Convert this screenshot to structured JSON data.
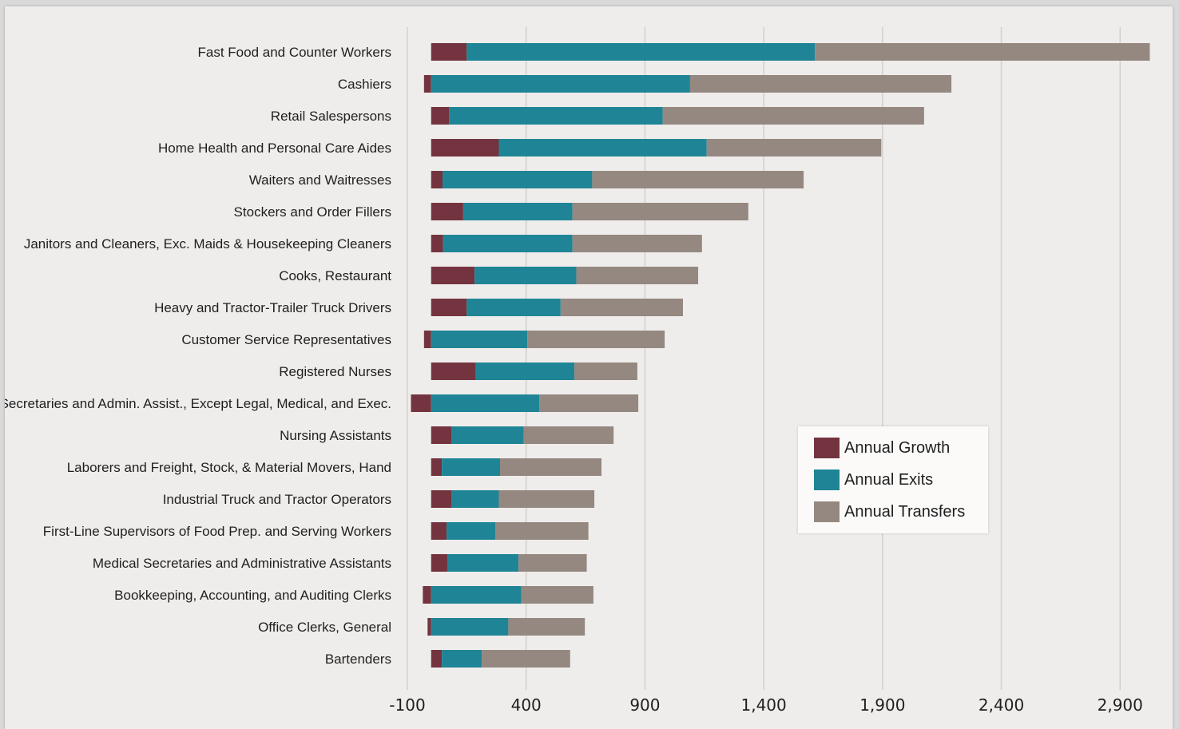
{
  "chart_data": {
    "type": "bar",
    "orientation": "horizontal",
    "stacked": true,
    "categories": [
      "Fast Food and Counter Workers",
      "Cashiers",
      "Retail Salespersons",
      "Home Health and Personal Care Aides",
      "Waiters and Waitresses",
      "Stockers and Order Fillers",
      "Janitors and Cleaners, Exc. Maids & Housekeeping Cleaners",
      "Cooks, Restaurant",
      "Heavy and Tractor-Trailer Truck Drivers",
      "Customer Service Representatives",
      "Registered Nurses",
      "Secretaries and Admin. Assist., Except Legal, Medical, and Exec.",
      "Nursing Assistants",
      "Laborers and Freight, Stock, & Material Movers, Hand",
      "Industrial Truck and Tractor Operators",
      "First-Line Supervisors of Food Prep. and Serving Workers",
      "Medical Secretaries and Administrative Assistants",
      "Bookkeeping, Accounting, and Auditing Clerks",
      "Office Clerks, General",
      "Bartenders"
    ],
    "series": [
      {
        "name": "Annual Growth",
        "color": "#74343f",
        "values": [
          150,
          -30,
          75,
          285,
          48,
          135,
          50,
          183,
          150,
          -30,
          188,
          -85,
          85,
          45,
          85,
          65,
          68,
          -35,
          -15,
          45
        ]
      },
      {
        "name": "Annual Exits",
        "color": "#1f8596",
        "values": [
          1465,
          1090,
          900,
          875,
          630,
          460,
          545,
          428,
          395,
          405,
          415,
          455,
          305,
          245,
          200,
          205,
          300,
          380,
          325,
          168
        ]
      },
      {
        "name": "Annual Transfers",
        "color": "#948880",
        "values": [
          1410,
          1100,
          1100,
          735,
          890,
          740,
          545,
          513,
          515,
          578,
          265,
          417,
          378,
          427,
          402,
          392,
          287,
          303,
          322,
          372
        ]
      }
    ],
    "xlim": [
      -100,
      3000
    ],
    "xticks": [
      -100,
      400,
      900,
      1400,
      1900,
      2400,
      2900
    ],
    "xtick_labels": [
      "-100",
      "400",
      "900",
      "1,400",
      "1,900",
      "2,400",
      "2,900"
    ],
    "grid": true,
    "legend_position": "center-right"
  }
}
